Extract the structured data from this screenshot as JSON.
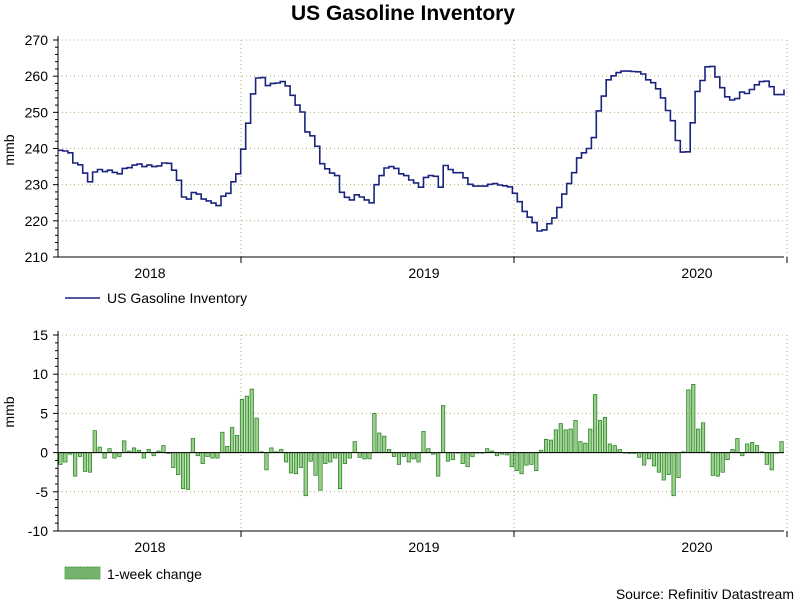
{
  "title": "US Gasoline Inventory",
  "source": "Source: Refinitiv Datastream",
  "colors": {
    "line": "#1a237e",
    "bar_stroke": "#1b7a1b",
    "bar_fill": "#9bd08a",
    "grid": "#aab06a"
  },
  "chart_data": [
    {
      "type": "line",
      "name": "inventory",
      "title": "US Gasoline Inventory",
      "ylabel": "mmb",
      "ylim": [
        210,
        270
      ],
      "yticks": [
        210,
        220,
        230,
        240,
        250,
        260,
        270
      ],
      "xtick_labels": [
        "2018",
        "2019",
        "2020"
      ],
      "legend": "US Gasoline Inventory",
      "legend_position": "bottom-left",
      "series": [
        {
          "name": "US Gasoline Inventory",
          "values": [
            239.5,
            239.3,
            238.8,
            236,
            235.5,
            233.2,
            230.8,
            233.5,
            234.2,
            233.6,
            234,
            233.4,
            233,
            234.5,
            234.7,
            235.4,
            235.7,
            235,
            235.4,
            235,
            235.2,
            236,
            235.9,
            234,
            231.2,
            226.6,
            226,
            227.8,
            227.4,
            226,
            225.5,
            224.9,
            224.2,
            226.8,
            227.6,
            230.8,
            233,
            239.8,
            247,
            255.1,
            259.5,
            259.6,
            257.4,
            258,
            258.1,
            258.5,
            257.3,
            254.7,
            252,
            250.1,
            244.6,
            243.5,
            240.6,
            235.8,
            234.4,
            233.2,
            232.5,
            227.9,
            226.5,
            225.8,
            227.2,
            226.6,
            225.8,
            225,
            230,
            232.5,
            234.6,
            235,
            234.5,
            233,
            232.5,
            231.3,
            230.5,
            229.3,
            232,
            232.5,
            232.3,
            229.3,
            235.3,
            234.2,
            233.3,
            233.3,
            231.9,
            230.1,
            229.6,
            229.6,
            229.6,
            230.1,
            230.3,
            229.9,
            229.7,
            229.4,
            227.6,
            225.3,
            222.6,
            221,
            219.5,
            217.2,
            217.5,
            219.2,
            220.8,
            223.7,
            227.4,
            230.3,
            233.3,
            237.4,
            238.8,
            240,
            243,
            250.4,
            254.5,
            259,
            260.1,
            261,
            261.4,
            261.4,
            261.3,
            261.2,
            260.6,
            259,
            258.2,
            256.5,
            254,
            250.5,
            247.7,
            242.2,
            239,
            239.1,
            247.1,
            255.8,
            258.8,
            262.6,
            262.7,
            259.8,
            256.8,
            254.3,
            253.4,
            253.8,
            255.6,
            255.2,
            256.3,
            257.6,
            258.5,
            258.6,
            257.1,
            254.9,
            254.9,
            256.3
          ]
        }
      ]
    },
    {
      "type": "bar",
      "name": "weekly-change",
      "ylabel": "mmb",
      "ylim": [
        -10,
        15
      ],
      "yticks": [
        -10,
        -5,
        0,
        5,
        10,
        15
      ],
      "xtick_labels": [
        "2018",
        "2019",
        "2020"
      ],
      "legend": "1-week change",
      "legend_position": "bottom-left",
      "series": [
        {
          "name": "1-week change",
          "values": [
            -1.5,
            -1.2,
            -0.2,
            -3,
            -0.5,
            -2.4,
            -2.5,
            2.8,
            0.7,
            -0.7,
            0.5,
            -0.7,
            -0.5,
            1.5,
            0.2,
            0.6,
            0.3,
            -0.7,
            0.4,
            -0.4,
            0.2,
            0.9,
            -0.1,
            -1.9,
            -2.8,
            -4.6,
            -4.7,
            1.8,
            -0.4,
            -1.4,
            -0.5,
            -0.7,
            -0.7,
            2.6,
            0.8,
            3.2,
            2.2,
            6.8,
            7.2,
            8.1,
            4.4,
            0.1,
            -2.2,
            0.6,
            0.1,
            0.4,
            -1.2,
            -2.6,
            -2.7,
            -1.9,
            -5.5,
            -1.1,
            -2.9,
            -4.8,
            -1.4,
            -1.2,
            -0.7,
            -4.6,
            -1.4,
            -0.7,
            1.4,
            -0.6,
            -0.8,
            -0.8,
            5,
            2.5,
            2.1,
            0.4,
            -0.5,
            -1.5,
            -0.5,
            -1.2,
            -0.8,
            -1.2,
            2.7,
            0.5,
            -0.2,
            -3,
            6,
            -1.1,
            -0.9,
            0,
            -1.4,
            -1.8,
            -0.5,
            0,
            0,
            0.5,
            0.2,
            -0.4,
            -0.2,
            -0.3,
            -1.8,
            -2.3,
            -2.7,
            -1.6,
            -1.5,
            -2.3,
            0.3,
            1.7,
            1.6,
            2.9,
            3.7,
            2.9,
            3,
            4.1,
            1.4,
            1.2,
            3,
            7.4,
            4.1,
            4.5,
            1.1,
            0.9,
            0.4,
            0,
            -0.1,
            -0.1,
            -0.6,
            -1.6,
            -0.8,
            -1.7,
            -2.5,
            -3.5,
            -2.8,
            -5.5,
            -3.2,
            0.1,
            8,
            8.7,
            3,
            3.8,
            0.1,
            -2.9,
            -3,
            -2.5,
            -0.9,
            0.4,
            1.8,
            -0.4,
            1.1,
            1.3,
            0.9,
            0.1,
            -1.5,
            -2.2,
            0,
            1.4
          ]
        }
      ]
    }
  ]
}
